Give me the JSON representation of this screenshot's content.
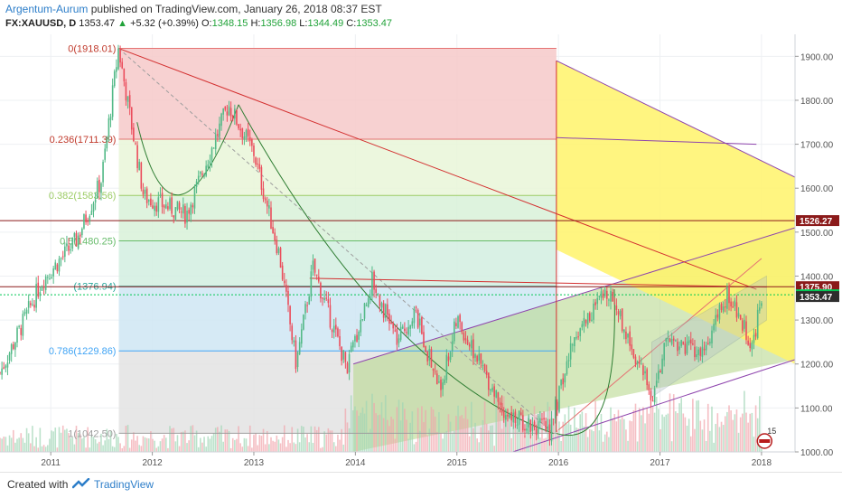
{
  "header": {
    "author": "Argentum-Aurum",
    "published": "published on TradingView.com, January 26, 2018 08:37 EST",
    "symbol": "FX:XAUUSD, D",
    "last": "1353.47",
    "change": "+5.32 (+0.39%)",
    "open_label": "O:",
    "open": "1348.15",
    "high_label": "H:",
    "high": "1356.98",
    "low_label": "L:",
    "low": "1344.49",
    "close_label": "C:",
    "close": "1353.47"
  },
  "footer": {
    "created_with": "Created with",
    "brand": "TradingView"
  },
  "colors": {
    "up": "#53b987",
    "down": "#eb4d5c",
    "accent": "#2d7ec9",
    "fib_red": "#f6c9c9",
    "fib_green": "#dff5d7",
    "yellow": "#fff36a"
  },
  "chart_data": {
    "type": "candlestick",
    "x_ticks": [
      "2011",
      "2012",
      "2013",
      "2014",
      "2015",
      "2016",
      "2017",
      "2018"
    ],
    "y_ticks": [
      "1000.00",
      "1100.00",
      "1200.00",
      "1300.00",
      "1400.00",
      "1500.00",
      "1600.00",
      "1700.00",
      "1800.00",
      "1900.00"
    ],
    "ylim": [
      1000,
      1950
    ],
    "price_path": [
      [
        "2010-07",
        1180
      ],
      [
        "2010-12",
        1390
      ],
      [
        "2011-04",
        1480
      ],
      [
        "2011-07",
        1620
      ],
      [
        "2011-09",
        1918
      ],
      [
        "2011-12",
        1580
      ],
      [
        "2012-05",
        1540
      ],
      [
        "2012-10",
        1790
      ],
      [
        "2013-01",
        1680
      ],
      [
        "2013-04",
        1450
      ],
      [
        "2013-06",
        1200
      ],
      [
        "2013-08",
        1420
      ],
      [
        "2013-12",
        1190
      ],
      [
        "2014-03",
        1390
      ],
      [
        "2014-06",
        1250
      ],
      [
        "2014-08",
        1320
      ],
      [
        "2014-11",
        1140
      ],
      [
        "2015-01",
        1300
      ],
      [
        "2015-07",
        1080
      ],
      [
        "2015-12",
        1050
      ],
      [
        "2016-03",
        1270
      ],
      [
        "2016-07",
        1370
      ],
      [
        "2016-12",
        1125
      ],
      [
        "2017-02",
        1260
      ],
      [
        "2017-06",
        1220
      ],
      [
        "2017-09",
        1357
      ],
      [
        "2017-12",
        1240
      ],
      [
        "2018-01",
        1353
      ]
    ],
    "fib_levels": [
      {
        "label": "0(1918.01)",
        "value": 1918.01
      },
      {
        "label": "0.236(1711.39)",
        "value": 1711.39
      },
      {
        "label": "0.382(1583.56)",
        "value": 1583.56
      },
      {
        "label": "0.5(1480.25)",
        "value": 1480.25
      },
      {
        "label": "(1376.94)",
        "value": 1376.94
      },
      {
        "label": "0.786(1229.86)",
        "value": 1229.86
      },
      {
        "label": "1(1042.50)",
        "value": 1042.5
      }
    ],
    "price_labels": [
      {
        "text": "1526.27",
        "value": 1526.27,
        "color": "#8b1a1a"
      },
      {
        "text": "1375.90",
        "value": 1375.9,
        "color": "#8b1a1a"
      },
      {
        "text": "1357.52",
        "value": 1357.52,
        "color": "#00c853"
      },
      {
        "text": "1353.47",
        "value": 1353.47,
        "color": "#2e2e2e"
      }
    ],
    "horizontal_lines": [
      1526.27,
      1375.9
    ],
    "badge": "15"
  }
}
